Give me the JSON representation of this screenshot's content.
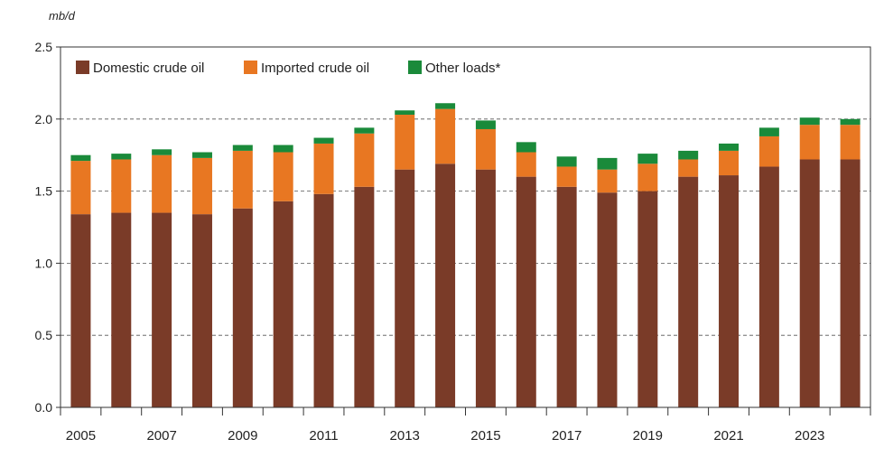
{
  "chart_data": {
    "type": "bar",
    "stacked": true,
    "title": "",
    "ylabel": "mb/d",
    "xlabel": "",
    "ylim": [
      0,
      2.5
    ],
    "yticks": [
      "0.0",
      "0.5",
      "1.0",
      "1.5",
      "2.0",
      "2.5"
    ],
    "grid": "horizontal dashed",
    "legend_position": "top-left",
    "categories": [
      "2005",
      "2006",
      "2007",
      "2008",
      "2009",
      "2010",
      "2011",
      "2012",
      "2013",
      "2014",
      "2015",
      "2016",
      "2017",
      "2018",
      "2019",
      "2020",
      "2021",
      "2022",
      "2023",
      "2024"
    ],
    "xtick_labels": [
      "2005",
      "",
      "2007",
      "",
      "2009",
      "",
      "2011",
      "",
      "2013",
      "",
      "2015",
      "",
      "2017",
      "",
      "2019",
      "",
      "2021",
      "",
      "2023",
      ""
    ],
    "series": [
      {
        "name": "Domestic crude oil",
        "color": "#7a3b28",
        "values": [
          1.34,
          1.35,
          1.35,
          1.34,
          1.38,
          1.43,
          1.48,
          1.53,
          1.65,
          1.69,
          1.65,
          1.6,
          1.53,
          1.49,
          1.5,
          1.6,
          1.61,
          1.67,
          1.72,
          1.72
        ]
      },
      {
        "name": "Imported crude oil",
        "color": "#e87722",
        "values": [
          0.37,
          0.37,
          0.4,
          0.39,
          0.4,
          0.34,
          0.35,
          0.37,
          0.38,
          0.38,
          0.28,
          0.17,
          0.14,
          0.16,
          0.19,
          0.12,
          0.17,
          0.21,
          0.24,
          0.24
        ]
      },
      {
        "name": "Other loads*",
        "color": "#1a8a3a",
        "values": [
          0.04,
          0.04,
          0.04,
          0.04,
          0.04,
          0.05,
          0.04,
          0.04,
          0.03,
          0.04,
          0.06,
          0.07,
          0.07,
          0.08,
          0.07,
          0.06,
          0.05,
          0.06,
          0.05,
          0.04
        ]
      }
    ]
  }
}
